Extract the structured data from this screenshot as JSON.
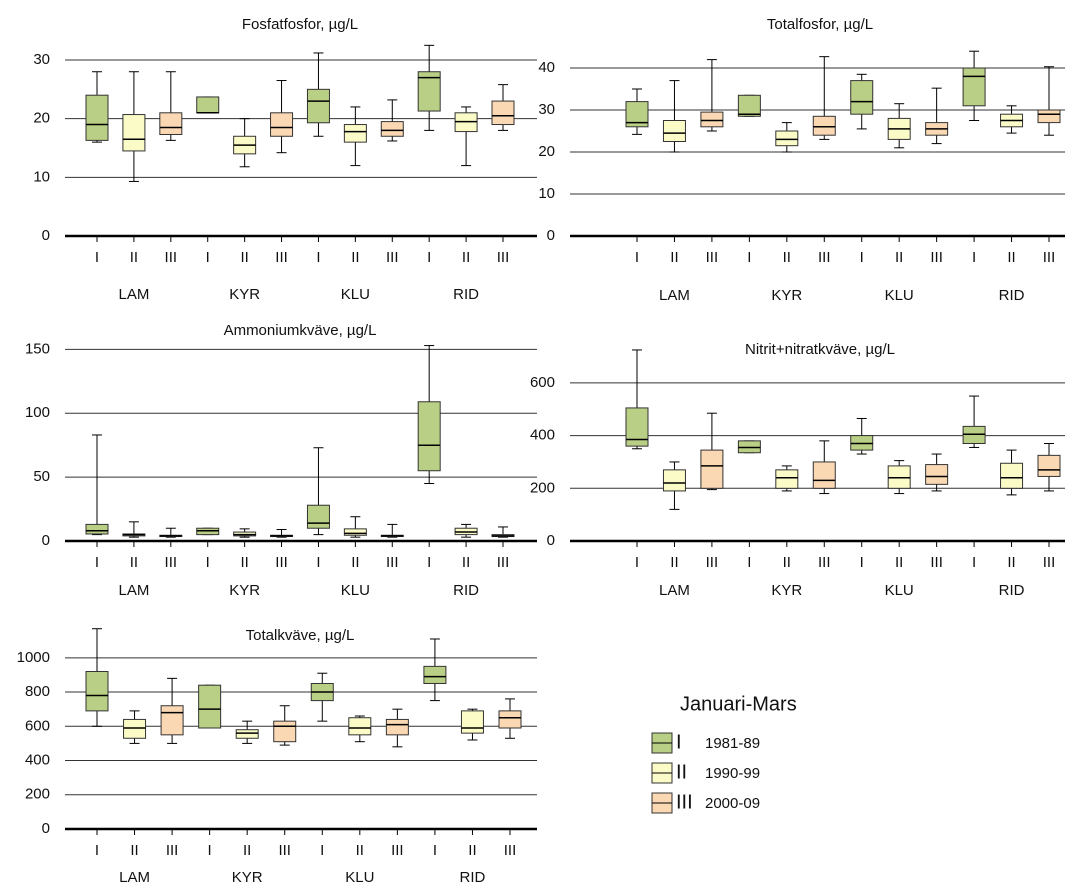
{
  "chart_data": [
    {
      "type": "box",
      "title": "Fosfatfosfor, µg/L",
      "categories": [
        "I",
        "II",
        "III",
        "I",
        "II",
        "III",
        "I",
        "II",
        "III",
        "I",
        "II",
        "III"
      ],
      "groups": [
        "LAM",
        "KYR",
        "KLU",
        "RID"
      ],
      "boxes": [
        {
          "low": 16,
          "q1": 16.3,
          "median": 19,
          "q3": 24,
          "high": 28
        },
        {
          "low": 9.3,
          "q1": 14.5,
          "median": 16.5,
          "q3": 20.7,
          "high": 28
        },
        {
          "low": 16.3,
          "q1": 17.3,
          "median": 18.5,
          "q3": 21,
          "high": 28
        },
        {
          "low": 21,
          "q1": 21,
          "median": 21,
          "q3": 23.7,
          "high": 23.7
        },
        {
          "low": 11.8,
          "q1": 14,
          "median": 15.5,
          "q3": 17,
          "high": 20
        },
        {
          "low": 14.2,
          "q1": 17,
          "median": 18.5,
          "q3": 21,
          "high": 26.5
        },
        {
          "low": 17,
          "q1": 19.3,
          "median": 23,
          "q3": 25,
          "high": 31.2
        },
        {
          "low": 12,
          "q1": 16,
          "median": 17.8,
          "q3": 19,
          "high": 22
        },
        {
          "low": 16.2,
          "q1": 17,
          "median": 18,
          "q3": 19.5,
          "high": 23.2
        },
        {
          "low": 18,
          "q1": 21.3,
          "median": 27,
          "q3": 28,
          "high": 32.5
        },
        {
          "low": 12,
          "q1": 17.8,
          "median": 19.5,
          "q3": 21,
          "high": 22
        },
        {
          "low": 18,
          "q1": 19,
          "median": 20.5,
          "q3": 23,
          "high": 25.8
        }
      ],
      "ylim": [
        0,
        33
      ],
      "yticks": [
        0,
        10,
        20,
        30
      ],
      "grid": true
    },
    {
      "type": "box",
      "title": "Totalfosfor, µg/L",
      "categories": [
        "I",
        "II",
        "III",
        "I",
        "II",
        "III",
        "I",
        "II",
        "III",
        "I",
        "II",
        "III"
      ],
      "groups": [
        "LAM",
        "KYR",
        "KLU",
        "RID"
      ],
      "boxes": [
        {
          "low": 24.2,
          "q1": 26,
          "median": 27,
          "q3": 32,
          "high": 35
        },
        {
          "low": 20,
          "q1": 22.5,
          "median": 24.5,
          "q3": 27.5,
          "high": 37
        },
        {
          "low": 25,
          "q1": 26,
          "median": 27.5,
          "q3": 29.5,
          "high": 42
        },
        {
          "low": 28.5,
          "q1": 28.5,
          "median": 29,
          "q3": 33.5,
          "high": 33.5
        },
        {
          "low": 20,
          "q1": 21.5,
          "median": 23,
          "q3": 25,
          "high": 27
        },
        {
          "low": 23,
          "q1": 24,
          "median": 26,
          "q3": 28.5,
          "high": 42.7
        },
        {
          "low": 25.5,
          "q1": 29,
          "median": 32,
          "q3": 37,
          "high": 38.5
        },
        {
          "low": 21,
          "q1": 23,
          "median": 25.5,
          "q3": 28,
          "high": 31.5
        },
        {
          "low": 22,
          "q1": 24,
          "median": 25.5,
          "q3": 27,
          "high": 35.2
        },
        {
          "low": 27.5,
          "q1": 31,
          "median": 38,
          "q3": 40,
          "high": 44
        },
        {
          "low": 24.5,
          "q1": 26,
          "median": 27.5,
          "q3": 29,
          "high": 31
        },
        {
          "low": 24,
          "q1": 27,
          "median": 29,
          "q3": 30,
          "high": 40.3
        }
      ],
      "ylim": [
        0,
        45
      ],
      "yticks": [
        0,
        10,
        20,
        30,
        40
      ],
      "grid": true
    },
    {
      "type": "box",
      "title": "Ammoniumkväve, µg/L",
      "categories": [
        "I",
        "II",
        "III",
        "I",
        "II",
        "III",
        "I",
        "II",
        "III",
        "I",
        "II",
        "III"
      ],
      "groups": [
        "LAM",
        "KYR",
        "KLU",
        "RID"
      ],
      "boxes": [
        {
          "low": 5,
          "q1": 5.5,
          "median": 8,
          "q3": 13,
          "high": 83
        },
        {
          "low": 3,
          "q1": 4,
          "median": 5,
          "q3": 5.5,
          "high": 15
        },
        {
          "low": 3,
          "q1": 3.5,
          "median": 4,
          "q3": 4.5,
          "high": 10
        },
        {
          "low": 5,
          "q1": 5,
          "median": 8,
          "q3": 10,
          "high": 10
        },
        {
          "low": 3,
          "q1": 4,
          "median": 5,
          "q3": 7,
          "high": 9.5
        },
        {
          "low": 3,
          "q1": 3.5,
          "median": 4,
          "q3": 4.5,
          "high": 9
        },
        {
          "low": 5,
          "q1": 10,
          "median": 14,
          "q3": 28,
          "high": 73
        },
        {
          "low": 3,
          "q1": 4.5,
          "median": 6,
          "q3": 9.5,
          "high": 19
        },
        {
          "low": 3,
          "q1": 3.5,
          "median": 4,
          "q3": 4.5,
          "high": 13
        },
        {
          "low": 45,
          "q1": 55,
          "median": 75,
          "q3": 109,
          "high": 153
        },
        {
          "low": 3,
          "q1": 5,
          "median": 7,
          "q3": 10,
          "high": 13
        },
        {
          "low": 3,
          "q1": 3.5,
          "median": 4,
          "q3": 5,
          "high": 11
        }
      ],
      "ylim": [
        0,
        155
      ],
      "yticks": [
        0,
        50,
        100,
        150
      ],
      "grid": true
    },
    {
      "type": "box",
      "title": "Nitrit+nitratkväve, µg/L",
      "categories": [
        "I",
        "II",
        "III",
        "I",
        "II",
        "III",
        "I",
        "II",
        "III",
        "I",
        "II",
        "III"
      ],
      "groups": [
        "LAM",
        "KYR",
        "KLU",
        "RID"
      ],
      "boxes": [
        {
          "low": 350,
          "q1": 360,
          "median": 385,
          "q3": 505,
          "high": 725
        },
        {
          "low": 120,
          "q1": 190,
          "median": 220,
          "q3": 270,
          "high": 300
        },
        {
          "low": 195,
          "q1": 200,
          "median": 285,
          "q3": 345,
          "high": 485
        },
        {
          "low": 335,
          "q1": 335,
          "median": 355,
          "q3": 380,
          "high": 380
        },
        {
          "low": 190,
          "q1": 200,
          "median": 240,
          "q3": 270,
          "high": 285
        },
        {
          "low": 180,
          "q1": 200,
          "median": 230,
          "q3": 300,
          "high": 380
        },
        {
          "low": 330,
          "q1": 345,
          "median": 370,
          "q3": 400,
          "high": 465
        },
        {
          "low": 180,
          "q1": 200,
          "median": 240,
          "q3": 285,
          "high": 305
        },
        {
          "low": 190,
          "q1": 215,
          "median": 245,
          "q3": 290,
          "high": 330
        },
        {
          "low": 355,
          "q1": 370,
          "median": 405,
          "q3": 435,
          "high": 550
        },
        {
          "low": 175,
          "q1": 200,
          "median": 240,
          "q3": 295,
          "high": 345
        },
        {
          "low": 190,
          "q1": 245,
          "median": 270,
          "q3": 325,
          "high": 370
        }
      ],
      "ylim": [
        0,
        740
      ],
      "yticks": [
        0,
        200,
        400,
        600
      ],
      "grid": true
    },
    {
      "type": "box",
      "title": "Totalkväve, µg/L",
      "categories": [
        "I",
        "II",
        "III",
        "I",
        "II",
        "III",
        "I",
        "II",
        "III",
        "I",
        "II",
        "III"
      ],
      "groups": [
        "LAM",
        "KYR",
        "KLU",
        "RID"
      ],
      "boxes": [
        {
          "low": 600,
          "q1": 690,
          "median": 780,
          "q3": 920,
          "high": 1170
        },
        {
          "low": 500,
          "q1": 530,
          "median": 590,
          "q3": 640,
          "high": 690
        },
        {
          "low": 500,
          "q1": 550,
          "median": 680,
          "q3": 720,
          "high": 880
        },
        {
          "low": 590,
          "q1": 590,
          "median": 700,
          "q3": 840,
          "high": 840
        },
        {
          "low": 500,
          "q1": 530,
          "median": 560,
          "q3": 580,
          "high": 630
        },
        {
          "low": 490,
          "q1": 510,
          "median": 600,
          "q3": 630,
          "high": 720
        },
        {
          "low": 630,
          "q1": 750,
          "median": 800,
          "q3": 850,
          "high": 910
        },
        {
          "low": 510,
          "q1": 550,
          "median": 590,
          "q3": 650,
          "high": 660
        },
        {
          "low": 480,
          "q1": 550,
          "median": 610,
          "q3": 640,
          "high": 700
        },
        {
          "low": 750,
          "q1": 850,
          "median": 890,
          "q3": 950,
          "high": 1110
        },
        {
          "low": 520,
          "q1": 560,
          "median": 590,
          "q3": 690,
          "high": 700
        },
        {
          "low": 530,
          "q1": 590,
          "median": 650,
          "q3": 690,
          "high": 760
        }
      ],
      "ylim": [
        0,
        1180
      ],
      "yticks": [
        0,
        200,
        400,
        600,
        800,
        1000
      ],
      "grid": true
    }
  ],
  "legend": {
    "title": "Januari-Mars",
    "items": [
      {
        "label": "I",
        "period": "1981-89",
        "color": "#b9cf85"
      },
      {
        "label": "II",
        "period": "1990-99",
        "color": "#fbfbc8"
      },
      {
        "label": "III",
        "period": "2000-09",
        "color": "#fbd8b4"
      }
    ]
  }
}
